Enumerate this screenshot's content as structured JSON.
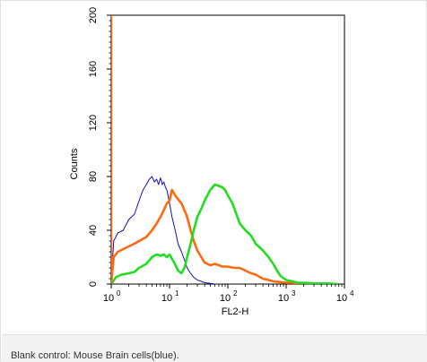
{
  "chart_data": {
    "type": "line",
    "xlabel": "FL2-H",
    "ylabel": "Counts",
    "x_scale": "log",
    "xlim": [
      1,
      10000
    ],
    "ylim": [
      0,
      200
    ],
    "x_tick_labels": [
      {
        "base": "10",
        "exp": "0",
        "value": 1
      },
      {
        "base": "10",
        "exp": "1",
        "value": 10
      },
      {
        "base": "10",
        "exp": "2",
        "value": 100
      },
      {
        "base": "10",
        "exp": "3",
        "value": 1000
      },
      {
        "base": "10",
        "exp": "4",
        "value": 10000
      }
    ],
    "y_ticks": [
      {
        "label": "0",
        "value": 0
      },
      {
        "label": "40",
        "value": 40
      },
      {
        "label": "80",
        "value": 80
      },
      {
        "label": "120",
        "value": 120
      },
      {
        "label": "160",
        "value": 160
      },
      {
        "label": "200",
        "value": 200
      }
    ],
    "grid": false,
    "legend": "none",
    "series": [
      {
        "color": "#1010c0",
        "stroke": "thin",
        "x": [
          1,
          1.1,
          1.3,
          1.6,
          2,
          2.5,
          3,
          3.5,
          4,
          4.5,
          5,
          5.5,
          6,
          6.5,
          7,
          7.5,
          8,
          8.5,
          9,
          10,
          11,
          12.5,
          14,
          16,
          18,
          20,
          23,
          26,
          30,
          35,
          40,
          50,
          60,
          80
        ],
        "y": [
          0,
          32,
          38,
          40,
          48,
          52,
          62,
          70,
          74,
          78,
          80,
          76,
          78,
          74,
          79,
          74,
          76,
          72,
          70,
          60,
          50,
          40,
          30,
          24,
          18,
          12,
          8,
          5,
          3,
          2,
          1,
          0.5,
          0,
          0
        ]
      },
      {
        "color": "#ff6a10",
        "stroke": "thick",
        "x": [
          1,
          1.1,
          1.3,
          1.6,
          2,
          2.5,
          3,
          4,
          5,
          6,
          7,
          8,
          9,
          10,
          11,
          12.5,
          14,
          16,
          18,
          20,
          23,
          26,
          30,
          35,
          40,
          50,
          60,
          70,
          80,
          100,
          130,
          160,
          200,
          250,
          300,
          400,
          500,
          600,
          800,
          1000,
          1300,
          1600,
          2000,
          3000
        ],
        "y": [
          0,
          20,
          24,
          26,
          28,
          30,
          32,
          35,
          40,
          45,
          50,
          55,
          60,
          62,
          70,
          66,
          63,
          60,
          55,
          50,
          40,
          32,
          25,
          20,
          16,
          14,
          15,
          14,
          13,
          13,
          12,
          12,
          10,
          8,
          7,
          4,
          3,
          2,
          1.5,
          1,
          1,
          0.5,
          0,
          0
        ]
      },
      {
        "color": "#22dd22",
        "stroke": "thick",
        "x": [
          1,
          1.2,
          1.5,
          2,
          2.5,
          3,
          4,
          5,
          6,
          7,
          8,
          9,
          10,
          12,
          14,
          16,
          18,
          20,
          23,
          26,
          30,
          35,
          40,
          50,
          60,
          70,
          80,
          90,
          100,
          120,
          140,
          160,
          200,
          250,
          300,
          400,
          500,
          600,
          700,
          800,
          1000,
          1300,
          1600,
          2000,
          3000,
          5000,
          8000
        ],
        "y": [
          0,
          5,
          7,
          8,
          9,
          12,
          15,
          20,
          22,
          21,
          22,
          20,
          22,
          16,
          10,
          8,
          12,
          20,
          30,
          40,
          50,
          56,
          62,
          70,
          74,
          73,
          72,
          70,
          66,
          60,
          52,
          45,
          40,
          36,
          30,
          25,
          20,
          15,
          10,
          6,
          3,
          2,
          1,
          1,
          0.5,
          0.5,
          0
        ]
      },
      {
        "color": "#ff6a10",
        "stroke": "vertical-baseline",
        "x": [
          1,
          1
        ],
        "y": [
          0,
          200
        ]
      }
    ]
  },
  "caption": "Blank control: Mouse Brain cells(blue)."
}
